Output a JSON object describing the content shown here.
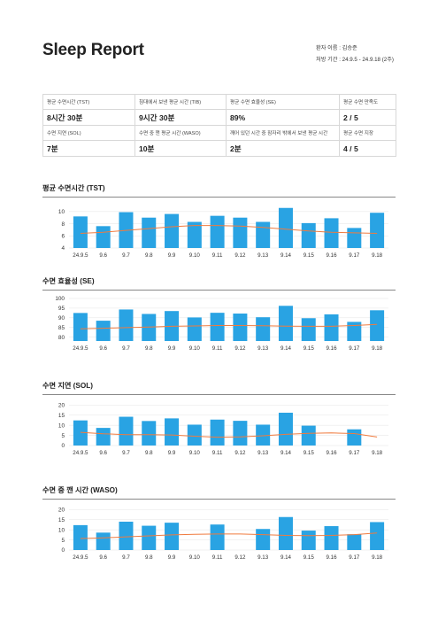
{
  "header": {
    "title": "Sleep Report",
    "patient_line": "환자 이름 : 김승준",
    "period_line": "처방 기간 : 24.9.5 - 24.9.18 (2주)"
  },
  "summary": {
    "rows": [
      [
        {
          "label": "평균 수면시간 (TST)",
          "value": "8시간 30분"
        },
        {
          "label": "침대에서 보낸 평균 시간 (TIB)",
          "value": "9시간 30분"
        },
        {
          "label": "평균 수면 효율성 (SE)",
          "value": "89%"
        },
        {
          "label": "평균 수면 만족도",
          "value": "2 / 5"
        }
      ],
      [
        {
          "label": "수면 지연 (SOL)",
          "value": "7분"
        },
        {
          "label": "수면 중 깬 평균 시간 (WASO)",
          "value": "10분"
        },
        {
          "label": "깨어 있던 시간 중 잠자리 밖에서 보낸 평균 시간",
          "value": "2분"
        },
        {
          "label": "평균 수면 지장",
          "value": "4 / 5"
        }
      ]
    ]
  },
  "colors": {
    "bar": "#29a3e3",
    "trend": "#f07b3f",
    "grid": "#e4e4e4",
    "rule": "#888888"
  },
  "chart_data": [
    {
      "type": "bar",
      "title": "평균 수면시간 (TST)",
      "categories": [
        "24.9.5",
        "9.6",
        "9.7",
        "9.8",
        "9.9",
        "9.10",
        "9.11",
        "9.12",
        "9.13",
        "9.14",
        "9.15",
        "9.16",
        "9.17",
        "9.18"
      ],
      "values": [
        9.2,
        7.6,
        9.9,
        9.0,
        9.6,
        8.3,
        9.3,
        9.0,
        8.3,
        10.6,
        8.1,
        8.9,
        7.3,
        9.8
      ],
      "trend": [
        6.4,
        6.6,
        6.9,
        7.2,
        7.5,
        7.7,
        7.7,
        7.6,
        7.4,
        7.1,
        6.8,
        6.6,
        6.5,
        6.4
      ],
      "ylim": [
        4,
        11
      ],
      "yticks": [
        4,
        6,
        8,
        10
      ],
      "grid": true
    },
    {
      "type": "bar",
      "title": "수면 효율성 (SE)",
      "categories": [
        "24.9.5",
        "9.6",
        "9.7",
        "9.8",
        "9.9",
        "9.10",
        "9.11",
        "9.12",
        "9.13",
        "9.14",
        "9.15",
        "9.16",
        "9.17",
        "9.18"
      ],
      "values": [
        92.5,
        88.5,
        94.3,
        92.0,
        93.5,
        90.2,
        92.6,
        92.2,
        90.3,
        96.2,
        89.8,
        91.8,
        87.9,
        93.9
      ],
      "trend": [
        84.3,
        84.6,
        84.9,
        85.2,
        85.6,
        85.8,
        86.0,
        86.0,
        85.9,
        85.7,
        85.6,
        85.6,
        86.0,
        86.6
      ],
      "ylim": [
        78,
        100
      ],
      "yticks": [
        80,
        85,
        90,
        95,
        100
      ],
      "grid": true
    },
    {
      "type": "bar",
      "title": "수면 지연 (SOL)",
      "categories": [
        "24.9.5",
        "9.6",
        "9.7",
        "9.8",
        "9.9",
        "9.10",
        "9.11",
        "9.12",
        "9.13",
        "9.14",
        "9.15",
        "9.16",
        "9.17",
        "9.18"
      ],
      "values": [
        12.4,
        8.7,
        14.2,
        12.1,
        13.4,
        10.3,
        12.8,
        12.2,
        10.3,
        16.2,
        9.8,
        null,
        8.0,
        null
      ],
      "trend": [
        6.5,
        5.8,
        5.4,
        5.4,
        5.2,
        4.6,
        4.1,
        4.3,
        4.8,
        5.5,
        6.0,
        6.2,
        5.9,
        4.2
      ],
      "ylim": [
        0,
        21
      ],
      "yticks": [
        0,
        5,
        10,
        15,
        20
      ],
      "grid": true
    },
    {
      "type": "bar",
      "title": "수면 중 깬 시간 (WASO)",
      "categories": [
        "24.9.5",
        "9.6",
        "9.7",
        "9.8",
        "9.9",
        "9.10",
        "9.11",
        "9.12",
        "9.13",
        "9.14",
        "9.15",
        "9.16",
        "9.17",
        "9.18"
      ],
      "values": [
        12.3,
        8.6,
        14.0,
        12.0,
        13.5,
        null,
        12.6,
        null,
        10.4,
        16.3,
        9.6,
        11.8,
        7.8,
        13.8
      ],
      "trend": [
        5.7,
        6.0,
        6.5,
        7.0,
        7.5,
        7.8,
        7.9,
        7.9,
        7.6,
        7.2,
        7.1,
        7.2,
        7.6,
        8.4
      ],
      "ylim": [
        0,
        21
      ],
      "yticks": [
        0,
        5,
        10,
        15,
        20
      ],
      "grid": true
    }
  ]
}
